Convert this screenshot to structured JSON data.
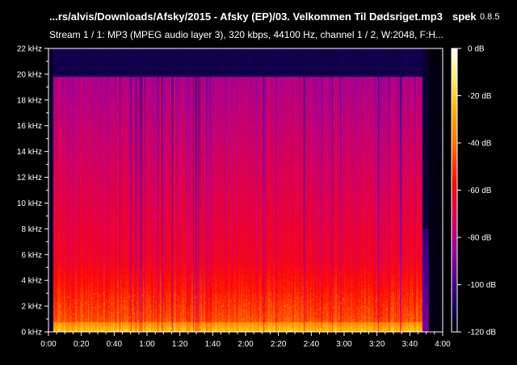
{
  "header": {
    "file_title": "...rs/alvis/Downloads/Afsky/2015 - Afsky (EP)/03. Velkommen Til Dødsriget.mp3",
    "app_name": "spek",
    "app_version": "0.8.5",
    "stream_info": "Stream 1 / 1: MP3 (MPEG audio layer 3), 320 kbps, 44100 Hz, channel 1 / 2, W:2048, F:H..."
  },
  "chart_data": {
    "type": "heatmap",
    "title": "...rs/alvis/Downloads/Afsky/2015 - Afsky (EP)/03. Velkommen Til Dødsriget.mp3",
    "xlabel": "",
    "ylabel": "",
    "x_ticks": [
      "0:00",
      "0:20",
      "0:40",
      "1:00",
      "1:20",
      "1:40",
      "2:00",
      "2:20",
      "2:40",
      "3:00",
      "3:20",
      "3:40",
      "4:00"
    ],
    "y_ticks": [
      "0 kHz",
      "2 kHz",
      "4 kHz",
      "6 kHz",
      "8 kHz",
      "10 kHz",
      "12 kHz",
      "14 kHz",
      "16 kHz",
      "18 kHz",
      "20 kHz",
      "22 kHz"
    ],
    "xlim_seconds": [
      0,
      240
    ],
    "ylim_khz": [
      0,
      22
    ],
    "colorbar_ticks": [
      "0 dB",
      "-20 dB",
      "-40 dB",
      "-60 dB",
      "-80 dB",
      "-100 dB",
      "-120 dB"
    ],
    "colorbar_range_db": [
      -120,
      0
    ],
    "audio_start_seconds": 3,
    "audio_end_seconds": 228,
    "content_cutoff_khz": 19.8,
    "grid": false
  }
}
